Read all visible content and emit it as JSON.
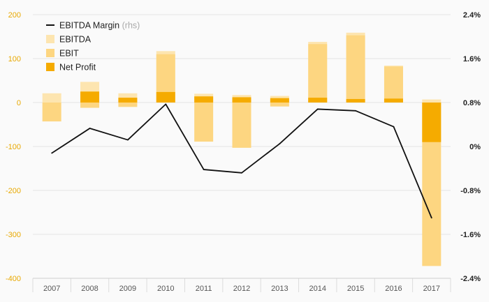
{
  "chart_data": {
    "type": "bar",
    "categories": [
      "2007",
      "2008",
      "2009",
      "2010",
      "2011",
      "2012",
      "2013",
      "2014",
      "2015",
      "2016",
      "2017"
    ],
    "series": [
      {
        "name": "EBITDA",
        "kind": "bar",
        "axis": "left",
        "color": "#fde5b0",
        "values": [
          21,
          47,
          21,
          117,
          20,
          17,
          15,
          138,
          159,
          84,
          7
        ]
      },
      {
        "name": "EBIT",
        "kind": "bar",
        "axis": "left",
        "color": "#fdd681",
        "values": [
          -43,
          -12,
          -10,
          110,
          -89,
          -103,
          -9,
          133,
          153,
          82,
          -372
        ]
      },
      {
        "name": "Net Profit",
        "kind": "bar",
        "axis": "left",
        "color": "#f5ab00",
        "values": [
          0,
          25,
          11,
          24,
          14,
          12,
          10,
          11,
          8,
          9,
          -90
        ]
      },
      {
        "name": "EBITDA Margin",
        "kind": "line",
        "axis": "right",
        "color": "#111111",
        "values": [
          -0.12,
          0.33,
          0.12,
          0.77,
          -0.42,
          -0.48,
          0.05,
          0.68,
          0.65,
          0.36,
          -1.3
        ]
      }
    ],
    "y_left": {
      "min": -400,
      "max": 200,
      "ticks": [
        "200",
        "100",
        "0",
        "-100",
        "-200",
        "-300",
        "-400"
      ]
    },
    "y_right": {
      "min": -2.4,
      "max": 2.4,
      "ticks": [
        "2.4%",
        "1.6%",
        "0.8%",
        "0%",
        "-0.8%",
        "-1.6%",
        "-2.4%"
      ]
    },
    "legend": {
      "position": "top-left",
      "items": [
        {
          "label": "EBITDA Margin",
          "note": "(rhs)",
          "type": "line",
          "color": "#111111"
        },
        {
          "label": "EBITDA",
          "note": "",
          "type": "box",
          "color": "#fde5b0"
        },
        {
          "label": "EBIT",
          "note": "",
          "type": "box",
          "color": "#fdd681"
        },
        {
          "label": "Net Profit",
          "note": "",
          "type": "box",
          "color": "#f5ab00"
        }
      ]
    },
    "grid": true
  }
}
